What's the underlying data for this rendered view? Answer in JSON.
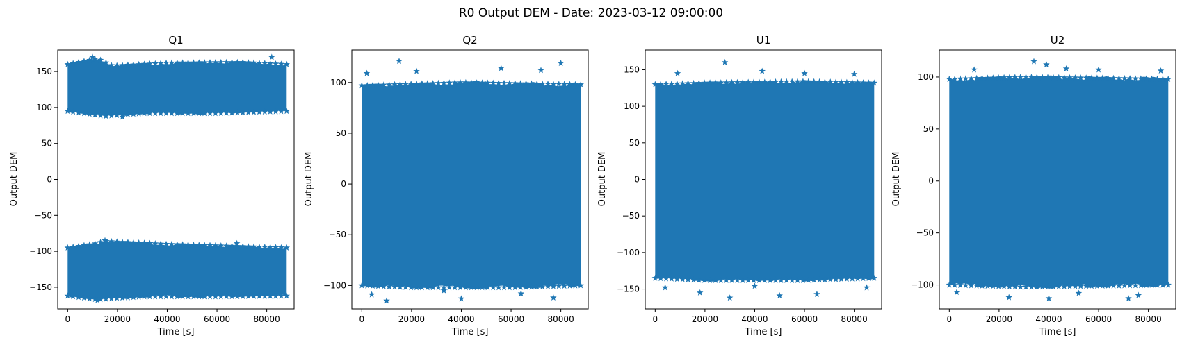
{
  "figure": {
    "suptitle": "R0 Output DEM - Date: 2023-03-12 09:00:00",
    "marker_color": "#1f77b4",
    "marker": "star"
  },
  "chart_data": [
    {
      "type": "scatter",
      "title": "Q1",
      "xlabel": "Time [s]",
      "ylabel": "Output DEM",
      "xlim": [
        -4000,
        91000
      ],
      "ylim": [
        -180,
        180
      ],
      "xticks": [
        0,
        20000,
        40000,
        60000,
        80000
      ],
      "yticks": [
        -150,
        -100,
        -50,
        0,
        50,
        100,
        150
      ],
      "x_range": [
        0,
        88000
      ],
      "bands": [
        {
          "low": [
            [
              0,
              95
            ],
            [
              15000,
              88
            ],
            [
              30000,
              92
            ],
            [
              60000,
              92
            ],
            [
              88000,
              95
            ]
          ],
          "high": [
            [
              0,
              160
            ],
            [
              12000,
              168
            ],
            [
              18000,
              158
            ],
            [
              40000,
              162
            ],
            [
              70000,
              163
            ],
            [
              88000,
              160
            ]
          ]
        },
        {
          "low": [
            [
              0,
              -162
            ],
            [
              12000,
              -167
            ],
            [
              30000,
              -163
            ],
            [
              60000,
              -163
            ],
            [
              88000,
              -162
            ]
          ],
          "high": [
            [
              0,
              -95
            ],
            [
              10000,
              -90
            ],
            [
              15000,
              -86
            ],
            [
              40000,
              -90
            ],
            [
              60000,
              -92
            ],
            [
              88000,
              -95
            ]
          ]
        }
      ],
      "outliers": [
        [
          10000,
          170
        ],
        [
          82000,
          170
        ],
        [
          12000,
          -168
        ],
        [
          15000,
          -85
        ],
        [
          68000,
          -89
        ],
        [
          22000,
          87
        ]
      ]
    },
    {
      "type": "scatter",
      "title": "Q2",
      "xlabel": "Time [s]",
      "ylabel": "Output DEM",
      "xlim": [
        -4000,
        91000
      ],
      "ylim": [
        -123,
        132
      ],
      "xticks": [
        0,
        20000,
        40000,
        60000,
        80000
      ],
      "yticks": [
        -100,
        -50,
        0,
        50,
        100
      ],
      "x_range": [
        0,
        88000
      ],
      "bands": [
        {
          "low": [
            [
              0,
              -100
            ],
            [
              20000,
              -102
            ],
            [
              60000,
              -102
            ],
            [
              88000,
              -100
            ]
          ],
          "high": [
            [
              0,
              97
            ],
            [
              40000,
              100
            ],
            [
              88000,
              98
            ]
          ]
        }
      ],
      "outliers": [
        [
          15000,
          121
        ],
        [
          80000,
          119
        ],
        [
          10000,
          -115
        ],
        [
          40000,
          -113
        ],
        [
          77000,
          -112
        ],
        [
          2000,
          109
        ],
        [
          22000,
          111
        ],
        [
          56000,
          114
        ],
        [
          72000,
          112
        ],
        [
          4000,
          -109
        ],
        [
          33000,
          -105
        ],
        [
          64000,
          -108
        ]
      ]
    },
    {
      "type": "scatter",
      "title": "U1",
      "xlabel": "Time [s]",
      "ylabel": "Output DEM",
      "xlim": [
        -4000,
        91000
      ],
      "ylim": [
        -177,
        177
      ],
      "xticks": [
        0,
        20000,
        40000,
        60000,
        80000
      ],
      "yticks": [
        -150,
        -100,
        -50,
        0,
        50,
        100,
        150
      ],
      "x_range": [
        0,
        88000
      ],
      "bands": [
        {
          "low": [
            [
              0,
              -135
            ],
            [
              20000,
              -138
            ],
            [
              60000,
              -138
            ],
            [
              88000,
              -135
            ]
          ],
          "high": [
            [
              0,
              130
            ],
            [
              20000,
              132
            ],
            [
              60000,
              134
            ],
            [
              88000,
              132
            ]
          ]
        }
      ],
      "outliers": [
        [
          28000,
          160
        ],
        [
          30000,
          -162
        ],
        [
          50000,
          -159
        ],
        [
          18000,
          -155
        ],
        [
          65000,
          -157
        ],
        [
          43000,
          148
        ],
        [
          9000,
          145
        ],
        [
          60000,
          145
        ],
        [
          80000,
          144
        ],
        [
          4000,
          -148
        ],
        [
          40000,
          -146
        ],
        [
          85000,
          -148
        ]
      ]
    },
    {
      "type": "scatter",
      "title": "U2",
      "xlabel": "Time [s]",
      "ylabel": "Output DEM",
      "xlim": [
        -4000,
        91000
      ],
      "ylim": [
        -123,
        126
      ],
      "xticks": [
        0,
        20000,
        40000,
        60000,
        80000
      ],
      "yticks": [
        -100,
        -50,
        0,
        50,
        100
      ],
      "x_range": [
        0,
        88000
      ],
      "bands": [
        {
          "low": [
            [
              0,
              -100
            ],
            [
              30000,
              -102
            ],
            [
              60000,
              -101
            ],
            [
              88000,
              -100
            ]
          ],
          "high": [
            [
              0,
              98
            ],
            [
              30000,
              100
            ],
            [
              60000,
              99
            ],
            [
              88000,
              98
            ]
          ]
        }
      ],
      "outliers": [
        [
          34000,
          115
        ],
        [
          39000,
          112
        ],
        [
          24000,
          -112
        ],
        [
          40000,
          -113
        ],
        [
          72000,
          -113
        ],
        [
          76000,
          -110
        ],
        [
          10000,
          107
        ],
        [
          47000,
          108
        ],
        [
          60000,
          107
        ],
        [
          85000,
          106
        ],
        [
          3000,
          -107
        ],
        [
          52000,
          -108
        ]
      ]
    }
  ]
}
